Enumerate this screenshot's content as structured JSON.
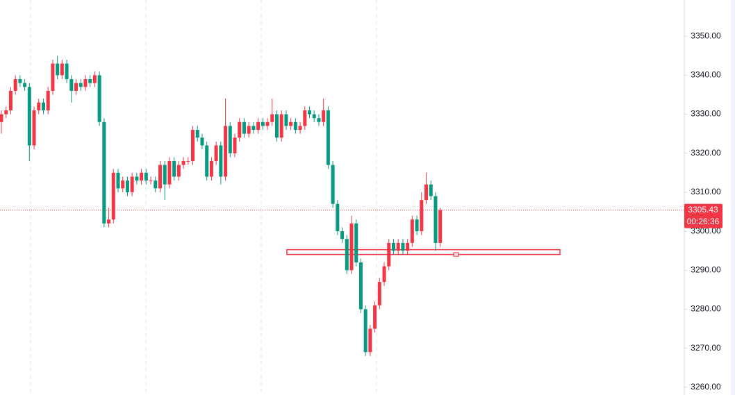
{
  "chart_data": {
    "type": "candlestick",
    "open": [
      3328,
      3330,
      3331,
      3336,
      3339,
      3338,
      3337,
      3322,
      3331,
      3333,
      3331,
      3336,
      3343,
      3340,
      3343,
      3339,
      3336,
      3338,
      3337,
      3339,
      3338,
      3340,
      3328,
      3302,
      3303,
      3315,
      3311,
      3313,
      3310,
      3314,
      3313,
      3315,
      3313,
      3313,
      3311,
      3317,
      3312,
      3318,
      3314,
      3317,
      3318,
      3318,
      3326,
      3324,
      3322,
      3314,
      3318,
      3322,
      3314,
      3327,
      3320,
      3324,
      3328,
      3325,
      3327,
      3326,
      3328,
      3327,
      3328,
      3330,
      3324,
      3330,
      3327,
      3328,
      3326,
      3327,
      3331,
      3330,
      3329,
      3328,
      3331,
      3317,
      3307,
      3300,
      3298,
      3290,
      3302,
      3292,
      3280,
      3269,
      3275,
      3281,
      3287,
      3291,
      3297,
      3295,
      3297,
      3295,
      3297,
      3303,
      3300,
      3308,
      3312,
      3309,
      3297
    ],
    "high": [
      3331,
      3332,
      3337,
      3340,
      3340,
      3339,
      3338,
      3332,
      3334,
      3334,
      3337,
      3344,
      3345,
      3344,
      3344,
      3340,
      3339,
      3339,
      3340,
      3340,
      3341,
      3341,
      3329,
      3306,
      3316,
      3316,
      3314,
      3314,
      3315,
      3315,
      3316,
      3316,
      3314,
      3314,
      3318,
      3318,
      3319,
      3319,
      3318,
      3319,
      3319,
      3327,
      3327,
      3325,
      3323,
      3319,
      3323,
      3323,
      3334,
      3328,
      3325,
      3329,
      3329,
      3328,
      3328,
      3329,
      3329,
      3329,
      3334,
      3331,
      3331,
      3331,
      3329,
      3329,
      3328,
      3332,
      3332,
      3331,
      3330,
      3334,
      3332,
      3318,
      3308,
      3301,
      3299,
      3304,
      3303,
      3293,
      3281,
      3276,
      3282,
      3288,
      3292,
      3298,
      3298,
      3298,
      3298,
      3298,
      3304,
      3304,
      3310,
      3315,
      3313,
      3310,
      3306
    ],
    "low": [
      3325,
      3329,
      3330,
      3335,
      3337,
      3336,
      3318,
      3321,
      3330,
      3330,
      3330,
      3335,
      3339,
      3339,
      3338,
      3333,
      3335,
      3336,
      3336,
      3337,
      3337,
      3327,
      3301,
      3301,
      3302,
      3310,
      3310,
      3309,
      3309,
      3312,
      3312,
      3312,
      3312,
      3310,
      3310,
      3308,
      3311,
      3313,
      3313,
      3316,
      3317,
      3317,
      3323,
      3321,
      3313,
      3313,
      3317,
      3312,
      3313,
      3319,
      3319,
      3323,
      3324,
      3324,
      3325,
      3325,
      3326,
      3326,
      3327,
      3323,
      3323,
      3326,
      3326,
      3325,
      3325,
      3326,
      3329,
      3328,
      3327,
      3327,
      3316,
      3306,
      3299,
      3297,
      3289,
      3289,
      3291,
      3279,
      3268,
      3268,
      3274,
      3280,
      3286,
      3290,
      3294,
      3294,
      3294,
      3294,
      3296,
      3299,
      3299,
      3307,
      3308,
      3295,
      3296
    ],
    "close": [
      3330,
      3331,
      3336,
      3339,
      3338,
      3337,
      3322,
      3331,
      3333,
      3331,
      3336,
      3343,
      3340,
      3343,
      3339,
      3336,
      3338,
      3337,
      3339,
      3338,
      3340,
      3328,
      3302,
      3303,
      3315,
      3311,
      3313,
      3310,
      3314,
      3313,
      3315,
      3313,
      3313,
      3311,
      3317,
      3312,
      3318,
      3314,
      3317,
      3318,
      3318,
      3326,
      3324,
      3322,
      3314,
      3318,
      3322,
      3314,
      3327,
      3320,
      3324,
      3328,
      3325,
      3327,
      3326,
      3328,
      3327,
      3328,
      3330,
      3324,
      3330,
      3327,
      3328,
      3326,
      3327,
      3331,
      3330,
      3329,
      3328,
      3331,
      3317,
      3307,
      3300,
      3298,
      3290,
      3302,
      3292,
      3280,
      3269,
      3275,
      3281,
      3287,
      3291,
      3297,
      3295,
      3297,
      3295,
      3297,
      3303,
      3300,
      3308,
      3312,
      3309,
      3297,
      3305.43
    ],
    "colors": {
      "up": "#f23645",
      "down": "#089981"
    },
    "ylim": [
      3258,
      3359.3
    ],
    "yticks": [
      {
        "value": 3260,
        "label": "3260.00"
      },
      {
        "value": 3270,
        "label": "3270.00"
      },
      {
        "value": 3280,
        "label": "3280.00"
      },
      {
        "value": 3290,
        "label": "3290.00"
      },
      {
        "value": 3300,
        "label": "3300.00"
      },
      {
        "value": 3310,
        "label": "3310.00"
      },
      {
        "value": 3320,
        "label": "3320.00"
      },
      {
        "value": 3330,
        "label": "3330.00"
      },
      {
        "value": 3340,
        "label": "3340.00"
      },
      {
        "value": 3350,
        "label": "3350.00"
      }
    ],
    "last_price": 3305.43,
    "countdown": "00:26:36",
    "zone": {
      "top": 3295.0,
      "bottom": 3294.3
    }
  }
}
